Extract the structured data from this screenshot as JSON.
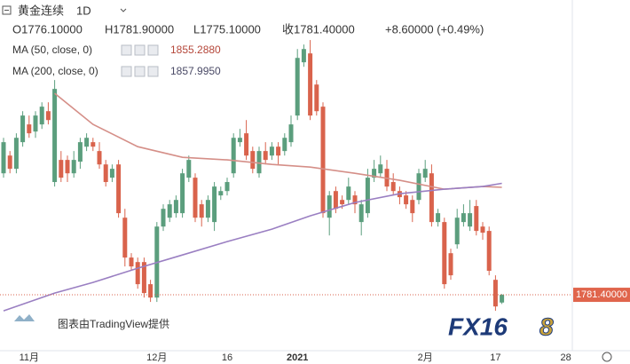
{
  "header": {
    "symbol": "黄金连续",
    "interval": "1D",
    "ohlc": [
      "O1776.10000",
      "H1781.90000",
      "L1775.10000",
      "收1781.40000",
      "+8.60000 (+0.49%)"
    ]
  },
  "watermark": "图表由TradingView提供",
  "logo": [
    "FX16",
    "8"
  ],
  "chart_data": {
    "type": "candlestick",
    "up_color": "#5b9e7d",
    "down_color": "#d9634c",
    "ylim": [
      1743,
      1984
    ],
    "xticks": [
      {
        "value": 4,
        "label": "11月"
      },
      {
        "value": 24,
        "label": "12月"
      },
      {
        "value": 35,
        "label": "16"
      },
      {
        "value": 46,
        "label": "2021"
      },
      {
        "value": 66,
        "label": "2月"
      },
      {
        "value": 77,
        "label": "17"
      },
      {
        "value": 88,
        "label": "28"
      }
    ],
    "open": [
      1864.9,
      1877.1,
      1868,
      1886.3,
      1898.5,
      1893.6,
      1898.5,
      1907.6,
      1858.9,
      1874.1,
      1874.1,
      1864.9,
      1872.9,
      1883.2,
      1886.3,
      1880.2,
      1871,
      1861.9,
      1871,
      1834.4,
      1807,
      1803.9,
      1803.9,
      1788.7,
      1779.5,
      1828.3,
      1834.4,
      1837.5,
      1837.5,
      1861.9,
      1861.9,
      1843.6,
      1834.4,
      1831.4,
      1849.7,
      1852.7,
      1864.9,
      1886.3,
      1892.4,
      1880.2,
      1864.9,
      1880.2,
      1877.1,
      1883.2,
      1880.2,
      1886.3,
      1904.6,
      1941.2,
      1947.3,
      1925.9,
      1910.7,
      1834.4,
      1852.7,
      1846.6,
      1846.6,
      1849.7,
      1831.4,
      1837.5,
      1861.9,
      1864.9,
      1868,
      1858.9,
      1852.7,
      1849.7,
      1846.6,
      1846.6,
      1861.9,
      1864.9,
      1831.4,
      1831.4,
      1810,
      1816.1,
      1831.4,
      1828.3,
      1842.4,
      1828.3,
      1825.3,
      1791.7,
      1776.1
    ],
    "high": [
      1889.3,
      1880.2,
      1892.4,
      1907.6,
      1904.6,
      1907.6,
      1913.7,
      1913.7,
      1929.0,
      1880.2,
      1877.1,
      1880.2,
      1889.3,
      1892.4,
      1889.3,
      1886.3,
      1874.1,
      1871,
      1874.1,
      1840.5,
      1810,
      1807,
      1807,
      1791.7,
      1831.4,
      1843.6,
      1846.6,
      1849.7,
      1868,
      1877.1,
      1864.9,
      1846.6,
      1849.7,
      1858.9,
      1855.8,
      1861.9,
      1892.4,
      1895.4,
      1901.5,
      1883.2,
      1883.2,
      1886.3,
      1886.3,
      1886.3,
      1892.4,
      1904.6,
      1950.3,
      1953.4,
      1956.5,
      1929.0,
      1913.7,
      1852.7,
      1855.8,
      1849.7,
      1861.9,
      1852.7,
      1846.6,
      1868,
      1874.1,
      1877.1,
      1874.1,
      1864.9,
      1855.8,
      1852.7,
      1849.7,
      1868,
      1874.1,
      1871,
      1840.5,
      1834.4,
      1813.1,
      1840.5,
      1843.6,
      1846.6,
      1846.6,
      1831.4,
      1828.3,
      1794.8,
      1781.9
    ],
    "low": [
      1861.9,
      1864.9,
      1864.9,
      1883.2,
      1889.3,
      1889.3,
      1895.4,
      1898.5,
      1855.8,
      1858.9,
      1858.9,
      1861.9,
      1868,
      1880.2,
      1880.2,
      1868,
      1855.8,
      1858.9,
      1834.4,
      1800.9,
      1797.9,
      1785.6,
      1779.5,
      1776.5,
      1776.5,
      1825.3,
      1831.4,
      1834.4,
      1834.4,
      1858.9,
      1831.4,
      1828.3,
      1831.4,
      1825.3,
      1846.6,
      1849.7,
      1861.9,
      1883.2,
      1874.1,
      1864.9,
      1861.9,
      1871,
      1874.1,
      1871,
      1877.1,
      1883.2,
      1901.5,
      1938.1,
      1901.5,
      1904.6,
      1834.4,
      1822.2,
      1837.5,
      1840.5,
      1843.6,
      1837.5,
      1822.2,
      1834.4,
      1858.9,
      1861.9,
      1852.7,
      1849.7,
      1843.6,
      1840.5,
      1831.4,
      1843.6,
      1858.9,
      1828.3,
      1828.3,
      1785.6,
      1791.7,
      1813.1,
      1828.3,
      1825.3,
      1822.2,
      1819.2,
      1794.8,
      1770.4,
      1775.1
    ],
    "close": [
      1886.3,
      1868,
      1889.3,
      1904.6,
      1892.4,
      1904.6,
      1910.7,
      1901.5,
      1922.9,
      1861.9,
      1864.9,
      1874.1,
      1886.3,
      1889.3,
      1883.2,
      1871,
      1858.9,
      1868,
      1837.5,
      1807,
      1800.9,
      1788.7,
      1782.6,
      1779.5,
      1828.3,
      1840.5,
      1843.6,
      1846.6,
      1864.9,
      1874.1,
      1834.4,
      1834.4,
      1846.6,
      1855.8,
      1852.7,
      1858.9,
      1889.3,
      1889.3,
      1877.1,
      1868,
      1880.2,
      1874.1,
      1883.2,
      1877.1,
      1889.3,
      1898.5,
      1944.2,
      1950.3,
      1904.6,
      1907.6,
      1837.5,
      1849.7,
      1840.5,
      1843.6,
      1855.8,
      1843.6,
      1843.6,
      1861.9,
      1868,
      1871,
      1855.8,
      1852.7,
      1848.5,
      1843.6,
      1837.5,
      1864.9,
      1868,
      1831.4,
      1837.5,
      1788.7,
      1794.8,
      1834.4,
      1837.5,
      1837.5,
      1825.3,
      1824.1,
      1797.9,
      1773.4,
      1781.4
    ],
    "last_price_label": "1781.40000",
    "series": [
      {
        "name": "MA (50, close, 0)",
        "color": "#d58f88",
        "value_label": "1855.2880",
        "x": [
          8,
          14,
          21,
          28,
          35,
          42,
          48,
          55,
          62,
          69,
          75,
          78
        ],
        "values": [
          1919.9,
          1898.5,
          1883.2,
          1875.9,
          1874.1,
          1871,
          1869.2,
          1864.9,
          1860.1,
          1854,
          1855.8,
          1855.288
        ]
      },
      {
        "name": "MA (200, close, 0)",
        "color": "#9a7fc2",
        "value_label": "1857.9950",
        "x": [
          0,
          8,
          14,
          21,
          28,
          35,
          42,
          48,
          55,
          62,
          69,
          75,
          78
        ],
        "values": [
          1770.4,
          1782.6,
          1789.9,
          1799.7,
          1808.8,
          1818,
          1826.5,
          1835.7,
          1844.8,
          1850.9,
          1854,
          1855.8,
          1857.995
        ]
      }
    ]
  }
}
